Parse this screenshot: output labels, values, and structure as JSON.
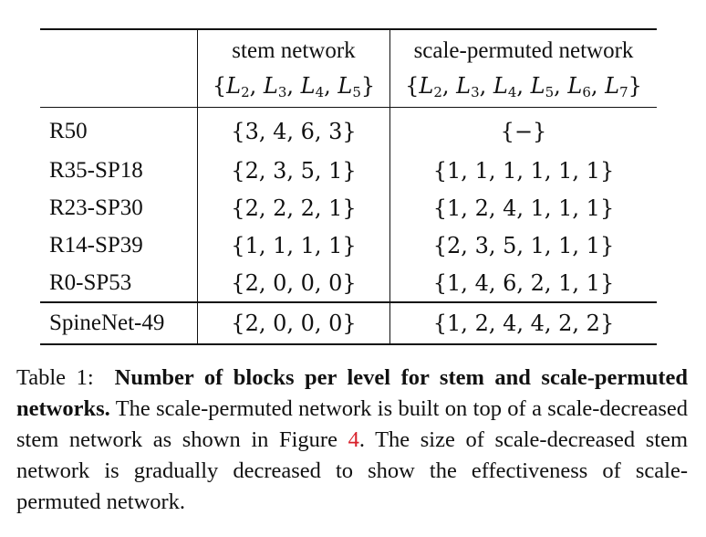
{
  "table": {
    "header": {
      "stem_title": "stem network",
      "perm_title": "scale-permuted network",
      "stem_levels": [
        "2",
        "3",
        "4",
        "5"
      ],
      "perm_levels": [
        "2",
        "3",
        "4",
        "5",
        "6",
        "7"
      ]
    },
    "rows": [
      {
        "name": "R50",
        "stem": "{3, 4, 6, 3}",
        "perm": "{−}"
      },
      {
        "name": "R35-SP18",
        "stem": "{2, 3, 5, 1}",
        "perm": "{1, 1, 1, 1, 1, 1}"
      },
      {
        "name": "R23-SP30",
        "stem": "{2, 2, 2, 1}",
        "perm": "{1, 2, 4, 1, 1, 1}"
      },
      {
        "name": "R14-SP39",
        "stem": "{1, 1, 1, 1}",
        "perm": "{2, 3, 5, 1, 1, 1}"
      },
      {
        "name": "R0-SP53",
        "stem": "{2, 0, 0, 0}",
        "perm": "{1, 4, 6, 2, 1, 1}"
      }
    ],
    "final_row": {
      "name": "SpineNet-49",
      "stem": "{2, 0, 0, 0}",
      "perm": "{1, 2, 4, 4, 2, 2}"
    }
  },
  "caption": {
    "label": "Table 1:",
    "bold": "Number of blocks per level for stem and scale-permuted networks.",
    "text_1": "The scale-permuted network is built on top of a scale-decreased stem network as shown in Figure",
    "ref": "4",
    "text_2": ". The size of scale-decreased stem network is gradually decreased to show the effectiveness of scale-permuted network.",
    "colors": {
      "ref": "#d8202a"
    }
  }
}
